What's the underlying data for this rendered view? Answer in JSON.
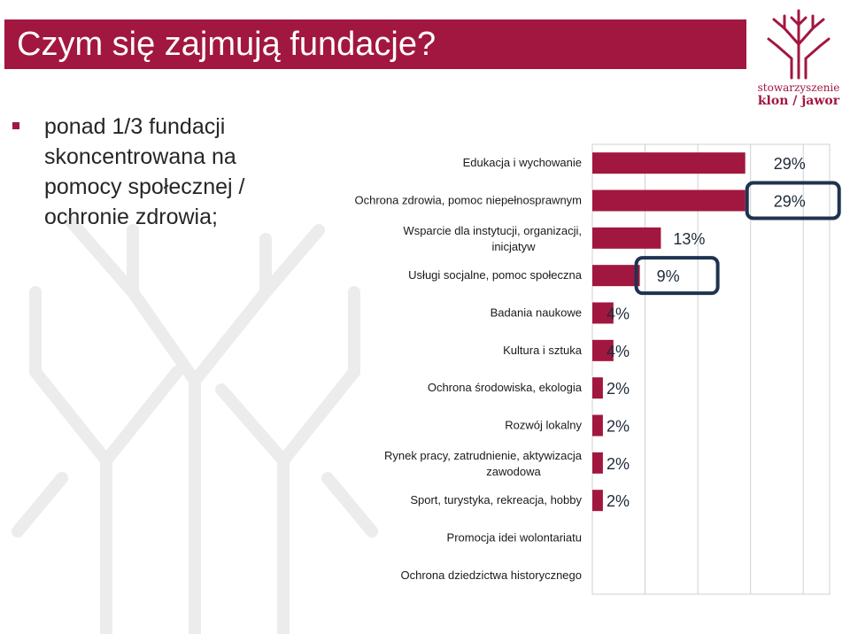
{
  "slide": {
    "title": "Czym się zajmują fundacje?",
    "bullet": "ponad 1/3 fundacji skoncentrowana na pomocy społecznej / ochronie zdrowia;"
  },
  "logo": {
    "line1": "stowarzyszenie",
    "line2": "klon / jawor"
  },
  "colors": {
    "brand": "#a2173f",
    "highlight": "#1f3350",
    "grid": "#d0d0d0"
  },
  "chart_data": {
    "type": "bar",
    "orientation": "horizontal",
    "xlim": [
      0,
      45
    ],
    "categories": [
      "Edukacja i wychowanie",
      "Ochrona zdrowia, pomoc niepełnosprawnym",
      "Wsparcie dla instytucji, organizacji, inicjatyw",
      "Usługi socjalne, pomoc społeczna",
      "Badania naukowe",
      "Kultura i sztuka",
      "Ochrona środowiska, ekologia",
      "Rozwój lokalny",
      "Rynek pracy, zatrudnienie, aktywizacja zawodowa",
      "Sport, turystyka, rekreacja, hobby",
      "Promocja idei wolontariatu",
      "Ochrona dziedzictwa historycznego"
    ],
    "values": [
      29,
      29,
      13,
      9,
      4,
      4,
      2,
      2,
      2,
      2,
      null,
      null
    ],
    "value_labels": [
      "29%",
      "29%",
      "13%",
      "9%",
      "4%",
      "4%",
      "2%",
      "2%",
      "2%",
      "2%",
      "",
      ""
    ],
    "highlighted": [
      "Ochrona zdrowia, pomoc niepełnosprawnym",
      "Usługi socjalne, pomoc społeczna"
    ]
  }
}
